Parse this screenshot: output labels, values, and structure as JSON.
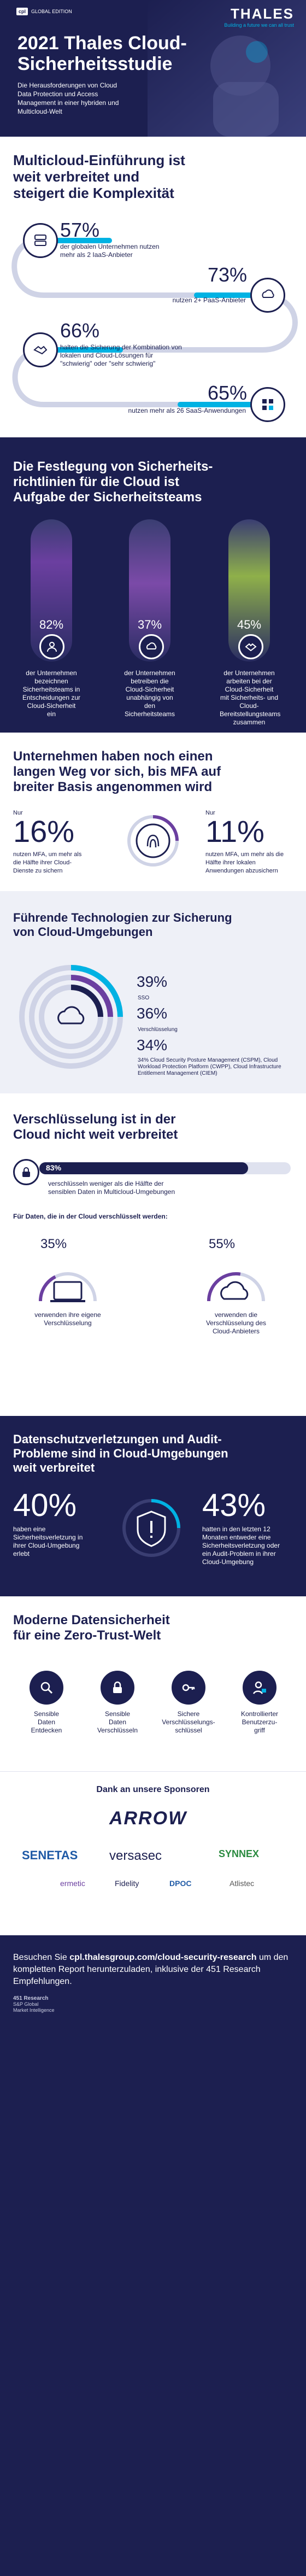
{
  "header": {
    "edition_logo": "cpl",
    "edition_label": "GLOBAL EDITION",
    "brand": "THALES",
    "tagline": "Building a future we can all trust",
    "title_line1": "2021 Thales Cloud-",
    "title_line2": "Sicherheitsstudie",
    "intro": "Die Herausforderungen von Cloud Data Protection und Access Management in einer hybriden und Multicloud-Welt"
  },
  "multicloud": {
    "heading_l1": "Multicloud-Einführung ist",
    "heading_l2": "weit verbreitet und",
    "heading_l3": "steigert die Komplexität",
    "stats": [
      {
        "pct": "57%",
        "value": 57,
        "text": "der globalen Unternehmen nutzen mehr als 2 IaaS-Anbieter"
      },
      {
        "pct": "73%",
        "value": 73,
        "text": "nutzen 2+ PaaS-Anbieter"
      },
      {
        "pct": "66%",
        "value": 66,
        "text": "halten die Sicherung der Kombination von lokalen und Cloud-Lösungen für \"schwierig\" oder \"sehr schwierig\""
      },
      {
        "pct": "65%",
        "value": 65,
        "text": "nutzen mehr als 26 SaaS-Anwendungen"
      }
    ]
  },
  "policy": {
    "heading_l1": "Die Festlegung von Sicherheits-",
    "heading_l2": "richtlinien für die Cloud ist",
    "heading_l3": "Aufgabe der Sicherheitsteams",
    "pills": [
      {
        "pct": "82%",
        "value": 82,
        "text": "der Unternehmen bezeichnen Sicherheitsteams in Entscheidungen zur Cloud-Sicherheit ein"
      },
      {
        "pct": "37%",
        "value": 37,
        "text": "der Unternehmen betreiben die Cloud-Sicherheit unabhängig von den Sicherheitsteams"
      },
      {
        "pct": "45%",
        "value": 45,
        "text": "der Unternehmen arbeiten bei der Cloud-Sicherheit mit Sicherheits- und Cloud-Bereitstellungsteams zusammen"
      }
    ]
  },
  "mfa": {
    "heading_l1": "Unternehmen haben noch einen",
    "heading_l2": "langen Weg vor sich, bis MFA auf",
    "heading_l3": "breiter Basis angenommen wird",
    "left_prefix": "Nur",
    "left_pct": "16%",
    "left_text": "nutzen MFA, um mehr als die Hälfte ihrer Cloud-Dienste zu sichern",
    "right_prefix": "Nur",
    "right_pct": "11%",
    "right_text": "nutzen MFA, um mehr als die Hälfte ihrer lokalen Anwendungen abzusichern"
  },
  "tech": {
    "heading_l1": "Führende Technologien zur Sicherung",
    "heading_l2": "von Cloud-Umgebungen",
    "items": [
      {
        "pct": "39%",
        "value": 39,
        "text": "SSO"
      },
      {
        "pct": "36%",
        "value": 36,
        "text": "Verschlüsselung"
      },
      {
        "pct": "34%",
        "value": 34,
        "text": "34% Cloud Security Posture Management (CSPM), Cloud Workload Protection Platform (CWPP), Cloud Infrastructure Entitlement Management (CIEM)"
      }
    ]
  },
  "encryption": {
    "heading_l1": "Verschlüsselung ist in der",
    "heading_l2": "Cloud nicht weit verbreitet",
    "main_pct": "83%",
    "main_value": 83,
    "main_text": "verschlüsseln weniger als die Hälfte der sensiblen Daten in Multicloud-Umgebungen",
    "sub_heading": "Für Daten, die in der Cloud verschlüsselt werden:",
    "left_pct": "35%",
    "left_value": 35,
    "left_text": "verwenden ihre eigene Verschlüsselung",
    "right_pct": "55%",
    "right_value": 55,
    "right_text": "verwenden die Verschlüsselung des Cloud-Anbieters"
  },
  "breach": {
    "heading_l1": "Datenschutzverletzungen und Audit-",
    "heading_l2": "Probleme sind in Cloud-Umgebungen",
    "heading_l3": "weit verbreitet",
    "left_pct": "40%",
    "left_text": "haben eine Sicherheitsverletzung in ihrer Cloud-Umgebung erlebt",
    "right_pct": "43%",
    "right_text": "hatten in den letzten 12 Monaten entweder eine Sicherheitsverletzung oder ein Audit-Problem in ihrer Cloud-Umgebung"
  },
  "zerotrust": {
    "heading_l1": "Moderne Datensicherheit",
    "heading_l2": "für eine Zero-Trust-Welt",
    "items": [
      {
        "l1": "Sensible",
        "l2": "Daten",
        "l3": "Entdecken",
        "icon": "search-lock-icon"
      },
      {
        "l1": "Sensible",
        "l2": "Daten",
        "l3": "Verschlüsseln",
        "icon": "lock-icon"
      },
      {
        "l1": "Sichere",
        "l2": "Verschlüsselungs-",
        "l3": "schlüssel",
        "icon": "key-icon"
      },
      {
        "l1": "Kontrollierter",
        "l2": "Benutzerzu-",
        "l3": "griff",
        "icon": "user-lock-icon"
      }
    ]
  },
  "sponsors": {
    "heading": "Dank an unsere Sponsoren",
    "names": [
      "ARROW",
      "SENETAS",
      "versasec",
      "SYNNEX",
      "ermetic",
      "Fidelity",
      "DPOC",
      "Atlistec"
    ]
  },
  "footer": {
    "text_prefix": "Besuchen Sie ",
    "link": "cpl.thalesgroup.com/cloud-security-research",
    "text_suffix": " um den kompletten Report herunterzuladen, inklusive der 451 Research Empfehlungen.",
    "research_label": "451 Research",
    "research_sub": "S&P Global",
    "research_sub2": "Market Intelligence"
  },
  "colors": {
    "navy": "#1c1f50",
    "cyan": "#00b2e3",
    "purple": "#6b3fa0",
    "olive": "#8fb04a"
  }
}
